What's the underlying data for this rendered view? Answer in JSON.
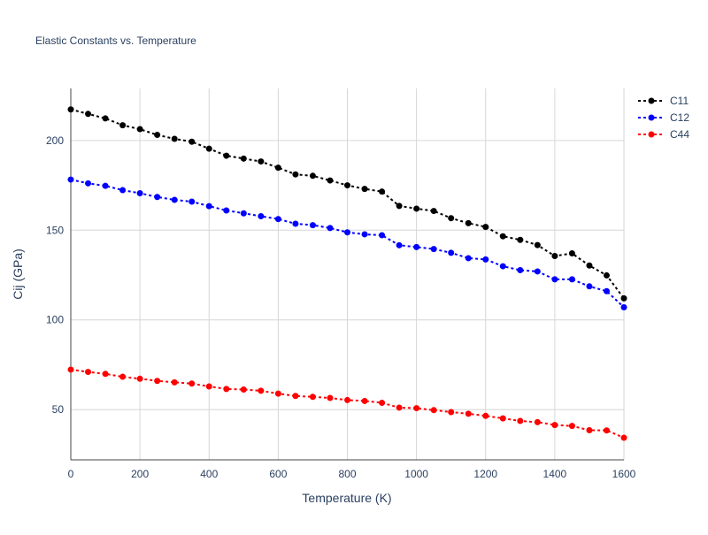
{
  "chart_data": {
    "type": "line",
    "title": "Elastic Constants vs. Temperature",
    "xlabel": "Temperature (K)",
    "ylabel": "Cij (GPa)",
    "xlim": [
      0,
      1600
    ],
    "ylim": [
      22,
      229
    ],
    "xticks": [
      0,
      200,
      400,
      600,
      800,
      1000,
      1200,
      1400,
      1600
    ],
    "yticks": [
      50,
      100,
      150,
      200
    ],
    "grid": true,
    "legend": "top-right",
    "x": [
      0,
      50,
      100,
      150,
      200,
      250,
      300,
      350,
      400,
      450,
      500,
      550,
      600,
      650,
      700,
      750,
      800,
      850,
      900,
      950,
      1000,
      1050,
      1100,
      1150,
      1200,
      1250,
      1300,
      1350,
      1400,
      1450,
      1500,
      1550,
      1600
    ],
    "series": [
      {
        "name": "C11",
        "color": "#000000",
        "values": [
          217.3,
          214.8,
          212.3,
          208.5,
          206.3,
          203.1,
          200.9,
          199.3,
          195.4,
          191.5,
          189.9,
          188.3,
          184.8,
          181.1,
          180.3,
          177.7,
          175.0,
          173.0,
          171.5,
          163.5,
          162.0,
          160.7,
          156.7,
          153.9,
          151.8,
          146.6,
          144.6,
          141.7,
          135.6,
          137.1,
          130.3,
          124.8,
          112.0
        ]
      },
      {
        "name": "C12",
        "color": "#0000ff",
        "values": [
          178.2,
          176.1,
          174.7,
          172.3,
          170.6,
          168.5,
          166.9,
          165.9,
          163.4,
          161.0,
          159.4,
          157.8,
          156.2,
          153.6,
          152.8,
          151.2,
          148.8,
          147.7,
          147.2,
          141.6,
          140.6,
          139.5,
          137.4,
          134.4,
          133.7,
          129.9,
          127.7,
          127.0,
          122.6,
          122.6,
          118.7,
          116.0,
          107.0
        ]
      },
      {
        "name": "C44",
        "color": "#ff0000",
        "values": [
          72.3,
          71.0,
          69.9,
          68.3,
          67.2,
          66.0,
          65.2,
          64.5,
          62.9,
          61.5,
          61.2,
          60.5,
          58.9,
          57.6,
          57.1,
          56.5,
          55.3,
          54.8,
          53.8,
          51.1,
          50.8,
          49.7,
          48.6,
          47.7,
          46.5,
          45.1,
          43.7,
          43.0,
          41.4,
          40.9,
          38.5,
          38.4,
          34.3
        ]
      }
    ]
  }
}
